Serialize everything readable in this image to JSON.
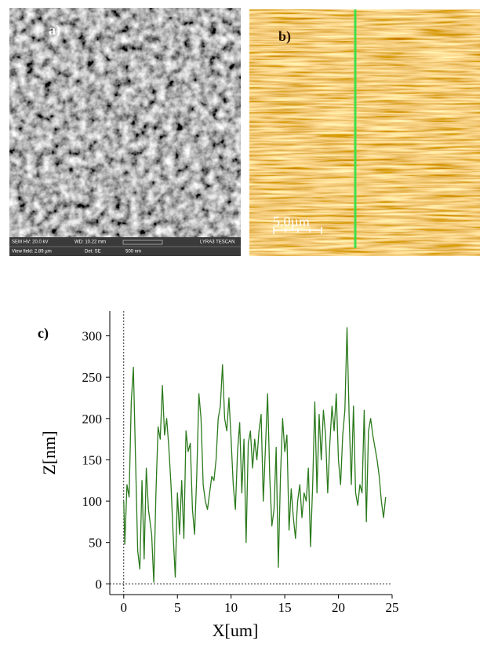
{
  "images": [
    {
      "label": "a)",
      "info_bar": [
        "SEM HV: 20.0 kV",
        "WD: 10.22 mm",
        "View field: 2.89 µm",
        "Det: SE",
        "500 nm",
        "LYRA3 TESCAN"
      ]
    },
    {
      "label": "b)",
      "scale_bar": "5.0µm"
    }
  ],
  "chart_data": {
    "type": "line",
    "panel_label": "c)",
    "x_label": "X[um]",
    "y_label": "Z[nm]",
    "color": "#2b7a1c",
    "zero_lines": true,
    "xlim": [
      -1.3,
      25
    ],
    "ylim": [
      -13,
      330
    ],
    "xticks": [
      0,
      5,
      10,
      15,
      20,
      25
    ],
    "yticks": [
      0,
      50,
      100,
      150,
      200,
      250,
      300
    ],
    "x": [
      0,
      0.1,
      0.3,
      0.5,
      0.7,
      0.9,
      1.1,
      1.3,
      1.5,
      1.7,
      1.9,
      2.1,
      2.3,
      2.6,
      2.8,
      3.0,
      3.2,
      3.4,
      3.6,
      3.8,
      4.0,
      4.2,
      4.4,
      4.6,
      4.8,
      5.0,
      5.2,
      5.4,
      5.6,
      5.8,
      6.0,
      6.2,
      6.4,
      6.6,
      6.8,
      7.0,
      7.2,
      7.4,
      7.6,
      7.8,
      8.0,
      8.2,
      8.4,
      8.6,
      8.8,
      9.0,
      9.2,
      9.4,
      9.6,
      9.8,
      10.0,
      10.2,
      10.4,
      10.6,
      10.8,
      11.0,
      11.2,
      11.4,
      11.6,
      11.8,
      12.0,
      12.2,
      12.4,
      12.6,
      12.8,
      13.0,
      13.2,
      13.4,
      13.6,
      13.8,
      14.0,
      14.2,
      14.4,
      14.6,
      14.8,
      15.0,
      15.2,
      15.4,
      15.6,
      15.8,
      16.0,
      16.2,
      16.4,
      16.6,
      16.8,
      17.0,
      17.2,
      17.4,
      17.6,
      17.8,
      18.0,
      18.2,
      18.4,
      18.6,
      18.8,
      19.0,
      19.2,
      19.4,
      19.6,
      19.8,
      20.0,
      20.2,
      20.4,
      20.6,
      20.8,
      21.0,
      21.2,
      21.4,
      21.6,
      21.8,
      22.0,
      22.2,
      22.4,
      22.6,
      22.8,
      23.0,
      23.2,
      23.4,
      23.6,
      23.8,
      24.0,
      24.2,
      24.4
    ],
    "values": [
      100,
      48,
      120,
      105,
      220,
      262,
      150,
      40,
      18,
      125,
      30,
      140,
      90,
      60,
      2,
      110,
      190,
      175,
      240,
      180,
      200,
      165,
      120,
      60,
      8,
      110,
      60,
      125,
      55,
      185,
      160,
      170,
      90,
      60,
      130,
      230,
      200,
      120,
      100,
      90,
      110,
      130,
      125,
      150,
      200,
      215,
      265,
      200,
      185,
      225,
      175,
      120,
      90,
      160,
      195,
      110,
      175,
      50,
      170,
      185,
      140,
      175,
      150,
      185,
      205,
      100,
      165,
      230,
      130,
      70,
      90,
      165,
      20,
      130,
      200,
      160,
      180,
      65,
      115,
      80,
      55,
      100,
      120,
      80,
      110,
      100,
      140,
      45,
      120,
      220,
      110,
      205,
      150,
      210,
      180,
      110,
      170,
      215,
      185,
      230,
      150,
      120,
      180,
      210,
      310,
      200,
      120,
      215,
      110,
      95,
      120,
      110,
      210,
      75,
      185,
      200,
      180,
      165,
      150,
      130,
      100,
      80,
      105
    ]
  }
}
